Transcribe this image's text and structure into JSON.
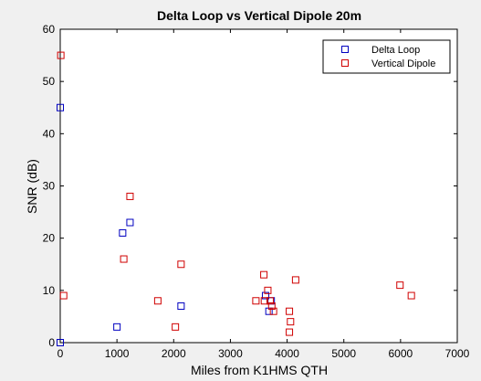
{
  "chart_data": {
    "type": "scatter",
    "title": "Delta Loop vs Vertical Dipole 20m",
    "xlabel": "Miles from K1HMS QTH",
    "ylabel": "SNR (dB)",
    "xlim": [
      0,
      7000
    ],
    "ylim": [
      0,
      60
    ],
    "xticks": [
      0,
      1000,
      2000,
      3000,
      4000,
      5000,
      6000,
      7000
    ],
    "yticks": [
      0,
      10,
      20,
      30,
      40,
      50,
      60
    ],
    "grid": false,
    "legend_position": "top-right",
    "marker": "square",
    "series": [
      {
        "name": "Delta Loop",
        "color": "#0000c0",
        "points": [
          [
            0,
            45
          ],
          [
            0,
            0
          ],
          [
            1000,
            3
          ],
          [
            1100,
            21
          ],
          [
            1230,
            23
          ],
          [
            2130,
            7
          ],
          [
            3620,
            9
          ],
          [
            3680,
            6
          ],
          [
            3720,
            8
          ]
        ]
      },
      {
        "name": "Vertical Dipole",
        "color": "#d00000",
        "points": [
          [
            10,
            55
          ],
          [
            60,
            9
          ],
          [
            1120,
            16
          ],
          [
            1230,
            28
          ],
          [
            1720,
            8
          ],
          [
            2030,
            3
          ],
          [
            2130,
            15
          ],
          [
            3450,
            8
          ],
          [
            3590,
            13
          ],
          [
            3600,
            8
          ],
          [
            3660,
            10
          ],
          [
            3700,
            8
          ],
          [
            3730,
            7
          ],
          [
            3760,
            6
          ],
          [
            4040,
            6
          ],
          [
            4060,
            4
          ],
          [
            4040,
            2
          ],
          [
            4150,
            12
          ],
          [
            5990,
            11
          ],
          [
            6190,
            9
          ]
        ]
      }
    ]
  }
}
